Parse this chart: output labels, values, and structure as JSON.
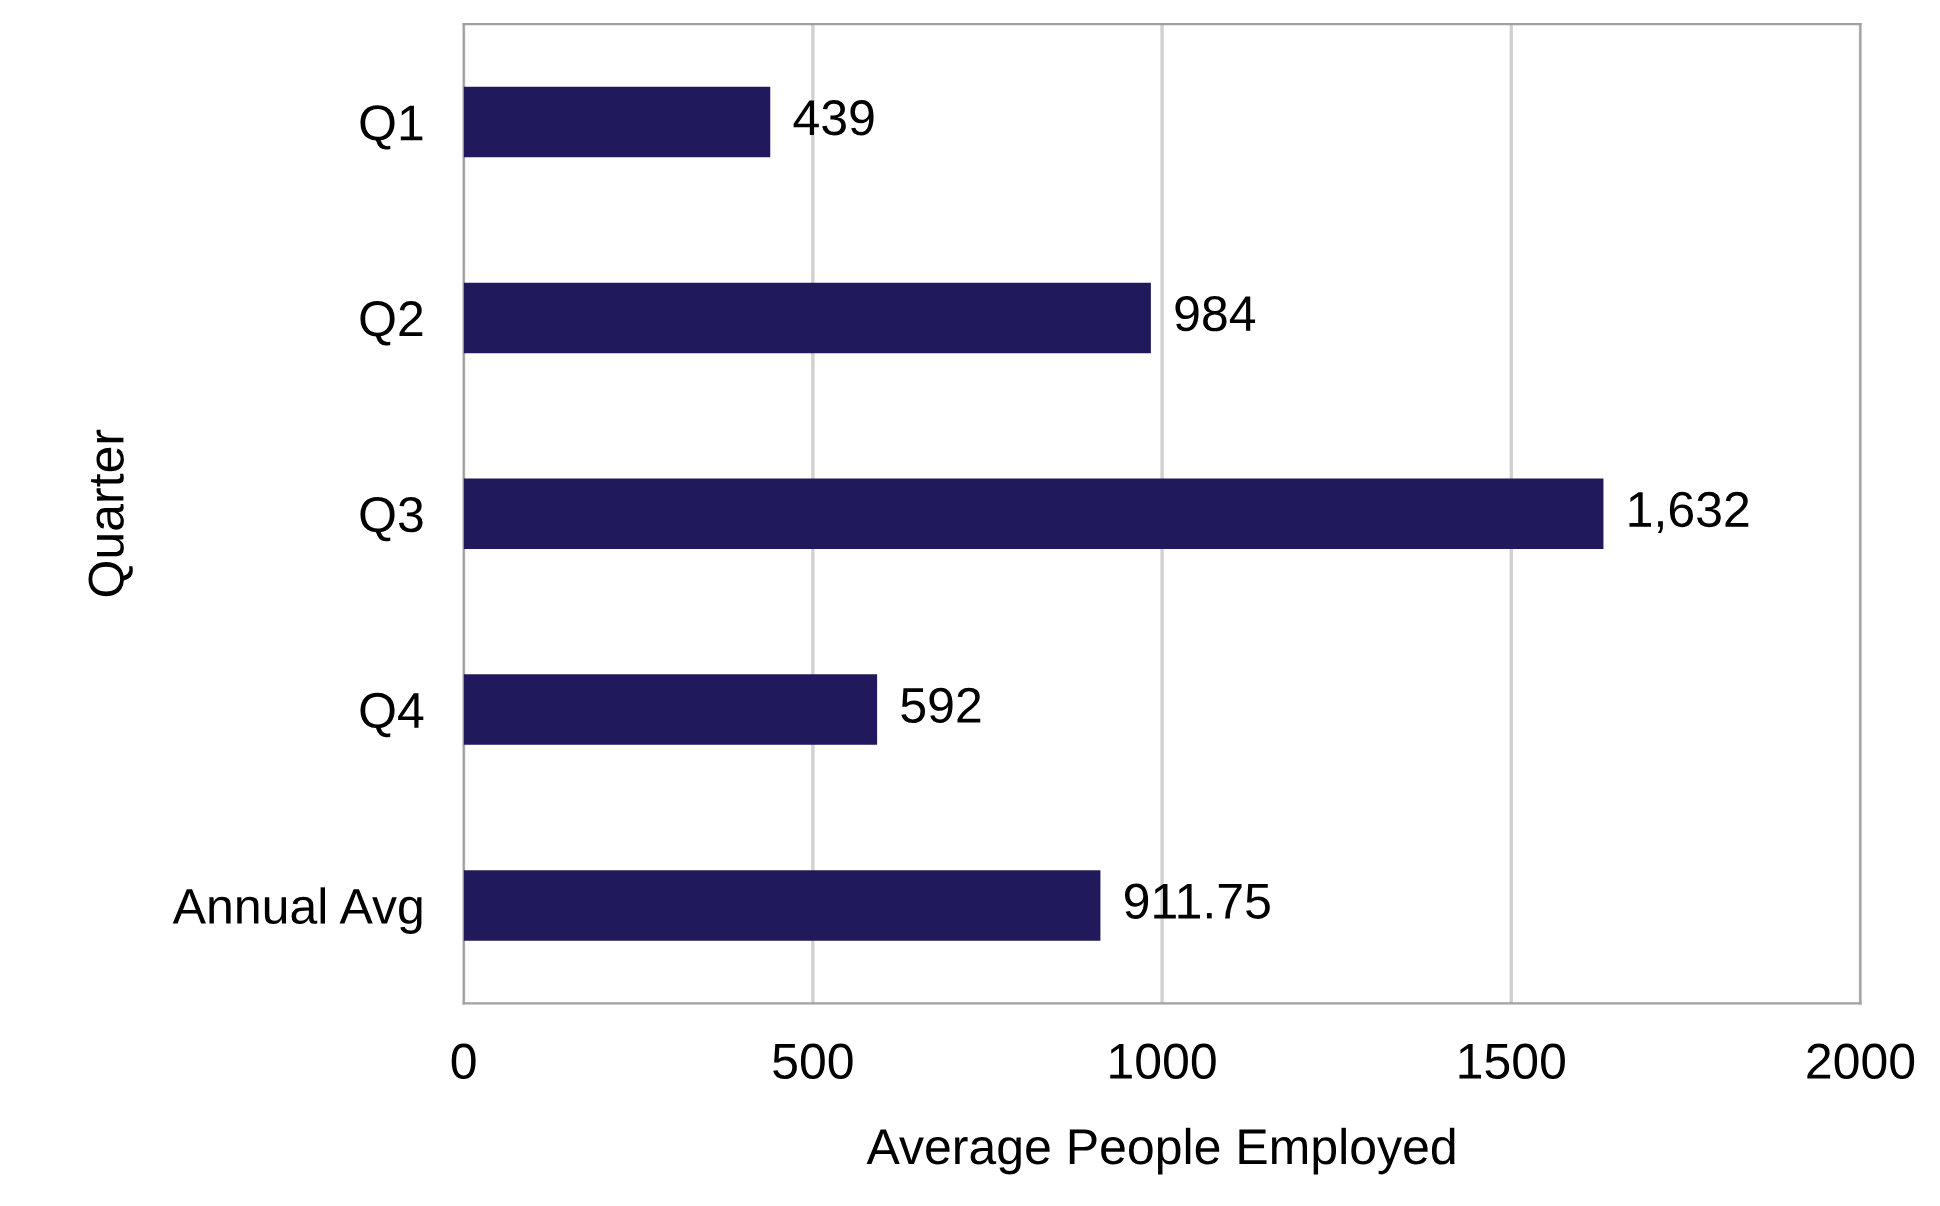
{
  "chart_data": {
    "type": "bar",
    "orientation": "horizontal",
    "xlabel": "Average People Employed",
    "ylabel": "Quarter",
    "categories": [
      "Q1",
      "Q2",
      "Q3",
      "Q4",
      "Annual Avg"
    ],
    "values": [
      439,
      984,
      1632,
      592,
      911.75
    ],
    "value_labels": [
      "439",
      "984",
      "1,632",
      "592",
      "911.75"
    ],
    "color": "#201a5c",
    "xlim": [
      0,
      2000
    ],
    "xticks": [
      0,
      500,
      1000,
      1500,
      2000
    ],
    "grid": "x"
  }
}
